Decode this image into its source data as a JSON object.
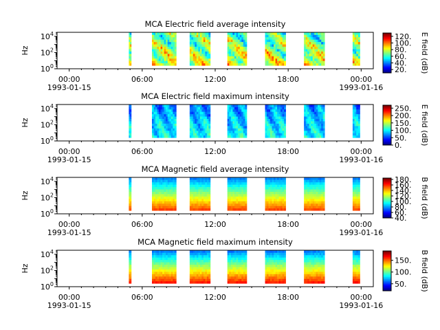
{
  "chart_data": [
    {
      "type": "heatmap",
      "title": "MCA  Electric field average intensity",
      "ylabel": "Hz",
      "colorbar_label": "E field (dB)",
      "colorbar_range": [
        10,
        130
      ],
      "colorbar_ticks": [
        "20.",
        "40.",
        "60.",
        "80.",
        "100.",
        "120."
      ],
      "y_ticks": [
        "0",
        "2",
        "4"
      ],
      "x_ticks": [
        {
          "time": "00:00",
          "date": "1993-01-15"
        },
        {
          "time": "06:00"
        },
        {
          "time": "12:00"
        },
        {
          "time": "18:00"
        },
        {
          "time": "00:00",
          "date": "1993-01-16"
        }
      ],
      "xlim_hours": [
        -1,
        25
      ],
      "ylim_log10": [
        0,
        4.5
      ],
      "data_segments_hours": [
        [
          4.9,
          5.1
        ],
        [
          6.8,
          8.8
        ],
        [
          9.9,
          11.6
        ],
        [
          13.0,
          14.6
        ],
        [
          16.1,
          17.8
        ],
        [
          19.3,
          21.0
        ],
        [
          23.3,
          23.9
        ]
      ],
      "freq_range_log10": [
        0.4,
        4.5
      ]
    },
    {
      "type": "heatmap",
      "title": "MCA  Electric field maximum intensity",
      "ylabel": "Hz",
      "colorbar_label": "E field (dB)",
      "colorbar_range": [
        0,
        270
      ],
      "colorbar_ticks": [
        "0.",
        "50.",
        "100.",
        "150.",
        "200.",
        "250."
      ],
      "y_ticks": [
        "0",
        "2",
        "4"
      ],
      "x_ticks": [
        {
          "time": "00:00",
          "date": "1993-01-15"
        },
        {
          "time": "06:00"
        },
        {
          "time": "12:00"
        },
        {
          "time": "18:00"
        },
        {
          "time": "00:00",
          "date": "1993-01-16"
        }
      ],
      "xlim_hours": [
        -1,
        25
      ],
      "ylim_log10": [
        0,
        4.5
      ],
      "data_segments_hours": [
        [
          4.9,
          5.1
        ],
        [
          6.8,
          8.8
        ],
        [
          9.9,
          11.6
        ],
        [
          13.0,
          14.6
        ],
        [
          16.1,
          17.8
        ],
        [
          19.3,
          21.0
        ],
        [
          23.3,
          23.9
        ]
      ],
      "freq_range_log10": [
        0.4,
        4.5
      ]
    },
    {
      "type": "heatmap",
      "title": "MCA  Magnetic field average intensity",
      "ylabel": "Hz",
      "colorbar_label": "B field (dB)",
      "colorbar_range": [
        40,
        185
      ],
      "colorbar_ticks": [
        "40.",
        "60.",
        "80.",
        "100.",
        "120.",
        "140.",
        "160.",
        "180."
      ],
      "y_ticks": [
        "0",
        "2",
        "4"
      ],
      "x_ticks": [
        {
          "time": "00:00",
          "date": "1993-01-15"
        },
        {
          "time": "06:00"
        },
        {
          "time": "12:00"
        },
        {
          "time": "18:00"
        },
        {
          "time": "00:00",
          "date": "1993-01-16"
        }
      ],
      "xlim_hours": [
        -1,
        25
      ],
      "ylim_log10": [
        0,
        4.5
      ],
      "data_segments_hours": [
        [
          4.9,
          5.1
        ],
        [
          6.8,
          8.8
        ],
        [
          9.9,
          11.6
        ],
        [
          13.0,
          14.6
        ],
        [
          16.1,
          17.8
        ],
        [
          19.3,
          21.0
        ],
        [
          23.3,
          23.9
        ]
      ],
      "freq_range_log10": [
        0.4,
        4.5
      ]
    },
    {
      "type": "heatmap",
      "title": "MCA  Magnetic field maximum intensity",
      "ylabel": "Hz",
      "colorbar_label": "B field (dB)",
      "colorbar_range": [
        20,
        190
      ],
      "colorbar_ticks": [
        "50.",
        "100.",
        "150."
      ],
      "y_ticks": [
        "0",
        "2",
        "4"
      ],
      "x_ticks": [
        {
          "time": "00:00",
          "date": "1993-01-15"
        },
        {
          "time": "06:00"
        },
        {
          "time": "12:00"
        },
        {
          "time": "18:00"
        },
        {
          "time": "00:00",
          "date": "1993-01-16"
        }
      ],
      "xlim_hours": [
        -1,
        25
      ],
      "ylim_log10": [
        0,
        4.5
      ],
      "data_segments_hours": [
        [
          4.9,
          5.1
        ],
        [
          6.8,
          8.8
        ],
        [
          9.9,
          11.6
        ],
        [
          13.0,
          14.6
        ],
        [
          16.1,
          17.8
        ],
        [
          19.3,
          21.0
        ],
        [
          23.3,
          23.9
        ]
      ],
      "freq_range_log10": [
        0.4,
        4.5
      ]
    }
  ]
}
